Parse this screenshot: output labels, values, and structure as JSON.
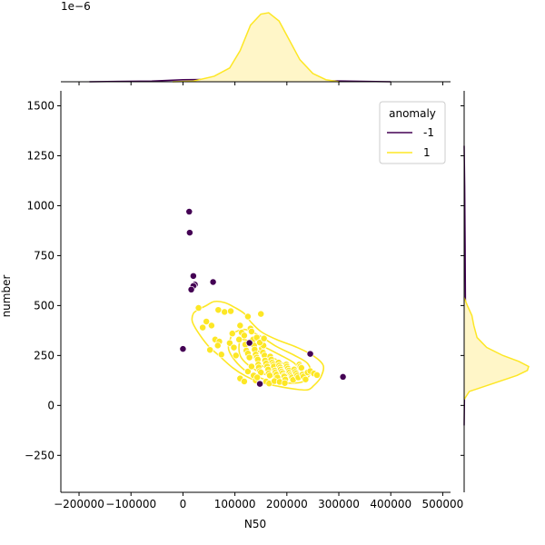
{
  "chart_data": {
    "type": "scatter",
    "title": "",
    "xlabel": "N50",
    "ylabel": "number",
    "xlim": [
      -235000,
      515000
    ],
    "ylim": [
      -435.0,
      1575
    ],
    "ylim_note_units": "number",
    "xticks": [
      -200000,
      -100000,
      0,
      100000,
      200000,
      300000,
      400000,
      500000
    ],
    "xtick_labels": [
      "−200000",
      "−100000",
      "0",
      "100000",
      "200000",
      "300000",
      "400000",
      "500000"
    ],
    "yticks": [
      -250,
      0,
      250,
      500,
      750,
      1000,
      1250,
      1500
    ],
    "ytick_labels": [
      "−250",
      "0",
      "250",
      "500",
      "750",
      "1000",
      "1250",
      "1500"
    ],
    "top_marginal_scale_label": "1e−6",
    "grid": false,
    "legend": {
      "title": "anomaly",
      "placement": "top-right",
      "entries": [
        {
          "label": "-1",
          "color": "#440154"
        },
        {
          "label": "1",
          "color": "#fde725"
        }
      ]
    },
    "series": [
      {
        "name": "-1",
        "color": "#440154",
        "points": [
          [
            12000,
            970
          ],
          [
            13000,
            865
          ],
          [
            20000,
            648
          ],
          [
            23000,
            605
          ],
          [
            20000,
            598
          ],
          [
            16000,
            580
          ],
          [
            58000,
            618
          ],
          [
            0,
            283
          ],
          [
            128000,
            313
          ],
          [
            148000,
            108
          ],
          [
            245000,
            258
          ],
          [
            308000,
            143
          ]
        ]
      },
      {
        "name": "1",
        "color": "#fde725",
        "points": [
          [
            68000,
            478
          ],
          [
            80000,
            468
          ],
          [
            92000,
            472
          ],
          [
            125000,
            445
          ],
          [
            150000,
            458
          ],
          [
            30000,
            488
          ],
          [
            45000,
            420
          ],
          [
            55000,
            400
          ],
          [
            38000,
            390
          ],
          [
            62000,
            330
          ],
          [
            70000,
            320
          ],
          [
            52000,
            278
          ],
          [
            67000,
            300
          ],
          [
            74000,
            255
          ],
          [
            90000,
            312
          ],
          [
            95000,
            360
          ],
          [
            98000,
            290
          ],
          [
            102000,
            250
          ],
          [
            108000,
            330
          ],
          [
            110000,
            400
          ],
          [
            113000,
            365
          ],
          [
            118000,
            350
          ],
          [
            120000,
            305
          ],
          [
            122000,
            275
          ],
          [
            125000,
            260
          ],
          [
            128000,
            240
          ],
          [
            130000,
            385
          ],
          [
            132000,
            370
          ],
          [
            135000,
            330
          ],
          [
            137000,
            300
          ],
          [
            138000,
            280
          ],
          [
            140000,
            255
          ],
          [
            142000,
            240
          ],
          [
            144000,
            230
          ],
          [
            145000,
            205
          ],
          [
            146000,
            190
          ],
          [
            148000,
            172
          ],
          [
            150000,
            165
          ],
          [
            152000,
            285
          ],
          [
            154000,
            265
          ],
          [
            155000,
            300
          ],
          [
            157000,
            250
          ],
          [
            158000,
            225
          ],
          [
            160000,
            210
          ],
          [
            162000,
            195
          ],
          [
            164000,
            180
          ],
          [
            165000,
            160
          ],
          [
            167000,
            150
          ],
          [
            168000,
            245
          ],
          [
            170000,
            230
          ],
          [
            172000,
            215
          ],
          [
            174000,
            205
          ],
          [
            175000,
            195
          ],
          [
            177000,
            175
          ],
          [
            178000,
            165
          ],
          [
            180000,
            155
          ],
          [
            182000,
            140
          ],
          [
            184000,
            215
          ],
          [
            185000,
            200
          ],
          [
            187000,
            190
          ],
          [
            188000,
            180
          ],
          [
            190000,
            170
          ],
          [
            192000,
            162
          ],
          [
            194000,
            150
          ],
          [
            195000,
            145
          ],
          [
            197000,
            130
          ],
          [
            199000,
            205
          ],
          [
            200000,
            195
          ],
          [
            202000,
            185
          ],
          [
            204000,
            175
          ],
          [
            205000,
            165
          ],
          [
            207000,
            155
          ],
          [
            209000,
            148
          ],
          [
            210000,
            140
          ],
          [
            212000,
            128
          ],
          [
            214000,
            180
          ],
          [
            216000,
            168
          ],
          [
            218000,
            160
          ],
          [
            220000,
            150
          ],
          [
            222000,
            140
          ],
          [
            224000,
            205
          ],
          [
            226000,
            195
          ],
          [
            228000,
            188
          ],
          [
            230000,
            155
          ],
          [
            232000,
            145
          ],
          [
            236000,
            130
          ],
          [
            240000,
            165
          ],
          [
            245000,
            172
          ],
          [
            252000,
            160
          ],
          [
            258000,
            152
          ],
          [
            110000,
            135
          ],
          [
            118000,
            120
          ],
          [
            125000,
            170
          ],
          [
            132000,
            195
          ],
          [
            136000,
            150
          ],
          [
            140000,
            125
          ],
          [
            143000,
            140
          ],
          [
            160000,
            120
          ],
          [
            166000,
            110
          ],
          [
            176000,
            122
          ],
          [
            186000,
            118
          ],
          [
            196000,
            112
          ],
          [
            142000,
            340
          ],
          [
            148000,
            315
          ],
          [
            156000,
            335
          ]
        ]
      }
    ],
    "kde_contours": [
      {
        "series": "1",
        "color": "#fde725",
        "path": [
          [
            20000,
            460
          ],
          [
            30000,
            480
          ],
          [
            45000,
            500
          ],
          [
            60000,
            520
          ],
          [
            80000,
            515
          ],
          [
            100000,
            490
          ],
          [
            118000,
            460
          ],
          [
            130000,
            420
          ],
          [
            150000,
            370
          ],
          [
            180000,
            330
          ],
          [
            220000,
            290
          ],
          [
            250000,
            250
          ],
          [
            270000,
            200
          ],
          [
            265000,
            140
          ],
          [
            252000,
            100
          ],
          [
            240000,
            78
          ],
          [
            215000,
            82
          ],
          [
            185000,
            95
          ],
          [
            150000,
            115
          ],
          [
            120000,
            148
          ],
          [
            95000,
            190
          ],
          [
            70000,
            248
          ],
          [
            48000,
            300
          ],
          [
            28000,
            370
          ],
          [
            18000,
            420
          ],
          [
            20000,
            460
          ]
        ]
      },
      {
        "series": "1",
        "color": "#fde725",
        "path": [
          [
            95000,
            360
          ],
          [
            120000,
            380
          ],
          [
            150000,
            345
          ],
          [
            180000,
            295
          ],
          [
            215000,
            250
          ],
          [
            240000,
            210
          ],
          [
            245000,
            160
          ],
          [
            230000,
            118
          ],
          [
            200000,
            112
          ],
          [
            165000,
            125
          ],
          [
            130000,
            158
          ],
          [
            105000,
            210
          ],
          [
            88000,
            280
          ],
          [
            92000,
            340
          ],
          [
            95000,
            360
          ]
        ]
      },
      {
        "series": "1",
        "color": "#fde725",
        "path": [
          [
            115000,
            330
          ],
          [
            150000,
            300
          ],
          [
            185000,
            255
          ],
          [
            215000,
            210
          ],
          [
            220000,
            170
          ],
          [
            200000,
            140
          ],
          [
            165000,
            150
          ],
          [
            135000,
            185
          ],
          [
            112000,
            240
          ],
          [
            108000,
            300
          ],
          [
            115000,
            330
          ]
        ]
      },
      {
        "series": "1",
        "color": "#fde725",
        "path": [
          [
            148000,
            270
          ],
          [
            172000,
            240
          ],
          [
            195000,
            205
          ],
          [
            200000,
            175
          ],
          [
            182000,
            168
          ],
          [
            158000,
            190
          ],
          [
            140000,
            225
          ],
          [
            138000,
            258
          ],
          [
            148000,
            270
          ]
        ]
      }
    ],
    "marginal_x": {
      "series": [
        {
          "name": "1",
          "color": "#fde725",
          "fill": "#fff6c8",
          "density": [
            [
              -20000,
              0.0
            ],
            [
              20000,
              0.01
            ],
            [
              60000,
              0.08
            ],
            [
              90000,
              0.2
            ],
            [
              110000,
              0.45
            ],
            [
              130000,
              0.82
            ],
            [
              150000,
              0.98
            ],
            [
              165000,
              1.0
            ],
            [
              185000,
              0.88
            ],
            [
              205000,
              0.6
            ],
            [
              225000,
              0.32
            ],
            [
              250000,
              0.12
            ],
            [
              275000,
              0.03
            ],
            [
              300000,
              0.0
            ]
          ]
        },
        {
          "name": "-1",
          "color": "#440154",
          "fill": "#d8cbe0",
          "density": [
            [
              -180000,
              0.0
            ],
            [
              -60000,
              0.01
            ],
            [
              0,
              0.03
            ],
            [
              60000,
              0.035
            ],
            [
              130000,
              0.03
            ],
            [
              200000,
              0.02
            ],
            [
              300000,
              0.012
            ],
            [
              400000,
              0.0
            ]
          ]
        }
      ]
    },
    "marginal_y": {
      "series": [
        {
          "name": "1",
          "color": "#fde725",
          "fill": "#fff6c8",
          "density": [
            [
              30,
              0.0
            ],
            [
              70,
              0.08
            ],
            [
              110,
              0.45
            ],
            [
              150,
              0.82
            ],
            [
              175,
              0.98
            ],
            [
              195,
              1.0
            ],
            [
              220,
              0.85
            ],
            [
              250,
              0.6
            ],
            [
              290,
              0.35
            ],
            [
              340,
              0.2
            ],
            [
              400,
              0.15
            ],
            [
              450,
              0.12
            ],
            [
              500,
              0.05
            ],
            [
              540,
              0.0
            ]
          ]
        },
        {
          "name": "-1",
          "color": "#440154",
          "fill": "#d8cbe0",
          "density": [
            [
              -100,
              0.0
            ],
            [
              200,
              0.01
            ],
            [
              500,
              0.02
            ],
            [
              800,
              0.015
            ],
            [
              1100,
              0.008
            ],
            [
              1300,
              0.0
            ]
          ]
        }
      ]
    }
  }
}
